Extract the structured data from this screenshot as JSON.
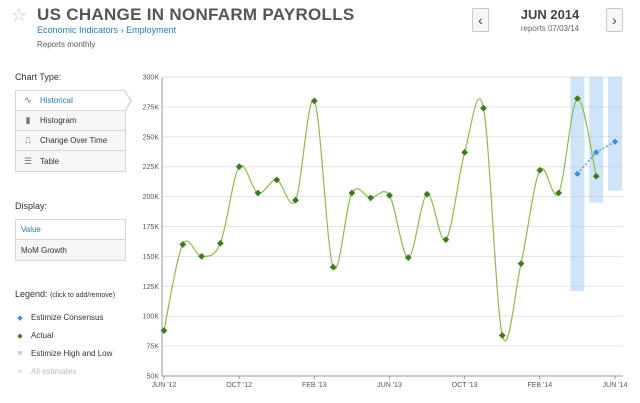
{
  "header": {
    "title": "US CHANGE IN NONFARM PAYROLLS",
    "breadcrumb": [
      "Economic Indicators",
      "Employment"
    ],
    "breadcrumb_sep": "›",
    "subtitle": "Reports monthly",
    "period": "JUN 2014",
    "reports_date": "reports 07/03/14",
    "prev_icon": "chevron-left-icon",
    "next_icon": "chevron-right-icon"
  },
  "sidebar": {
    "chart_type_label": "Chart Type:",
    "chart_types": [
      {
        "label": "Historical",
        "icon": "line-icon",
        "active": true
      },
      {
        "label": "Histogram",
        "icon": "bar-icon",
        "active": false
      },
      {
        "label": "Change Over Time",
        "icon": "step-icon",
        "active": false
      },
      {
        "label": "Table",
        "icon": "table-icon",
        "active": false
      }
    ],
    "display_label": "Display:",
    "display_options": [
      {
        "label": "Value",
        "active": true
      },
      {
        "label": "MoM Growth",
        "active": false
      }
    ],
    "legend_label": "Legend:",
    "legend_hint": "(click to add/remove)",
    "legend": [
      {
        "label": "Estimize Consensus",
        "color": "#3a8fd9",
        "marker": "diamond",
        "active": true
      },
      {
        "label": "Actual",
        "color": "#3e7b1f",
        "marker": "diamond",
        "active": true
      },
      {
        "label": "Estimize High and Low",
        "color": "#a8cdf0",
        "marker": "square",
        "active": true
      },
      {
        "label": "All estimates",
        "color": "#dddddd",
        "marker": "circle",
        "active": false
      }
    ]
  },
  "colors": {
    "actual": "#3e7b1f",
    "actual_line": "#8cbd4c",
    "consensus": "#3a8fd9",
    "range": "#a8cdf0",
    "grid": "#e3e3e3"
  },
  "chart_data": {
    "type": "line",
    "title": "",
    "xlabel": "",
    "ylabel": "",
    "ylim": [
      50,
      300
    ],
    "yticks": [
      "50K",
      "75K",
      "100K",
      "125K",
      "150K",
      "175K",
      "200K",
      "225K",
      "250K",
      "275K",
      "300K"
    ],
    "xticks": [
      {
        "label": "JUN '12",
        "at": "2012-06"
      },
      {
        "label": "OCT '12",
        "at": "2012-10"
      },
      {
        "label": "FEB '13",
        "at": "2013-02"
      },
      {
        "label": "JUN '13",
        "at": "2013-06"
      },
      {
        "label": "OCT '13",
        "at": "2013-10"
      },
      {
        "label": "FEB '14",
        "at": "2014-02"
      },
      {
        "label": "JUN '14",
        "at": "2014-06"
      }
    ],
    "x": [
      "2012-06",
      "2012-07",
      "2012-08",
      "2012-09",
      "2012-10",
      "2012-11",
      "2012-12",
      "2013-01",
      "2013-02",
      "2013-03",
      "2013-04",
      "2013-05",
      "2013-06",
      "2013-07",
      "2013-08",
      "2013-09",
      "2013-10",
      "2013-11",
      "2013-12",
      "2014-01",
      "2014-02",
      "2014-03",
      "2014-04",
      "2014-05",
      "2014-06"
    ],
    "series": [
      {
        "name": "Actual",
        "values": [
          88,
          160,
          150,
          161,
          225,
          203,
          214,
          197,
          280,
          141,
          203,
          199,
          201,
          149,
          202,
          164,
          237,
          274,
          84,
          144,
          222,
          203,
          282,
          217,
          null
        ]
      },
      {
        "name": "Estimize Consensus",
        "values": [
          null,
          null,
          null,
          null,
          null,
          null,
          null,
          null,
          null,
          null,
          null,
          null,
          null,
          null,
          null,
          null,
          null,
          null,
          null,
          null,
          null,
          null,
          219,
          237,
          246
        ]
      }
    ],
    "ranges": [
      {
        "x": "2014-04",
        "low": 121,
        "high": 300
      },
      {
        "x": "2014-05",
        "low": 195,
        "high": 300
      },
      {
        "x": "2014-06",
        "low": 205,
        "high": 300
      }
    ],
    "grid": true
  }
}
